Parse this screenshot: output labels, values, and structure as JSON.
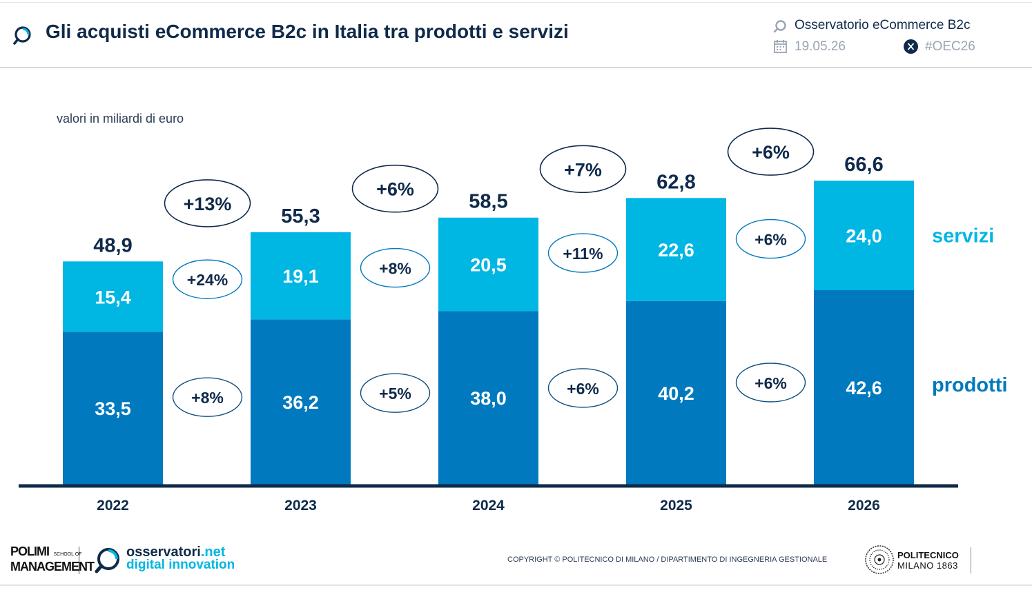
{
  "header": {
    "title": "Gli acquisti eCommerce B2c in Italia tra prodotti e servizi",
    "source": "Osservatorio eCommerce B2c",
    "date": "19.05.26",
    "hashtag": "#OEC26",
    "icons": [
      "magnifier-logo-icon",
      "calendar-icon",
      "x-social-icon"
    ]
  },
  "chart_data": {
    "type": "bar",
    "stacked": true,
    "subtitle": "valori in miliardi di euro",
    "categories": [
      "2022",
      "2023",
      "2024",
      "2025",
      "2026"
    ],
    "series": [
      {
        "name": "prodotti",
        "values": [
          33.5,
          36.2,
          38.0,
          40.2,
          42.6
        ],
        "labels": [
          "33,5",
          "36,2",
          "38,0",
          "40,2",
          "42,6"
        ],
        "color": "#0079bf"
      },
      {
        "name": "servizi",
        "values": [
          15.4,
          19.1,
          20.5,
          22.6,
          24.0
        ],
        "labels": [
          "15,4",
          "19,1",
          "20,5",
          "22,6",
          "24,0"
        ],
        "color": "#00b6e3"
      }
    ],
    "totals": [
      48.9,
      55.3,
      58.5,
      62.8,
      66.6
    ],
    "total_labels": [
      "48,9",
      "55,3",
      "58,5",
      "62,8",
      "66,6"
    ],
    "growth_total": [
      "+13%",
      "+6%",
      "+7%",
      "+6%"
    ],
    "growth_servizi": [
      "+24%",
      "+8%",
      "+11%",
      "+6%"
    ],
    "growth_prodotti": [
      "+8%",
      "+5%",
      "+6%",
      "+6%"
    ],
    "ylim": [
      0,
      70
    ],
    "grid": false,
    "legend": "right",
    "colors": {
      "prodotti": "#0079bf",
      "servizi": "#00b6e3",
      "text": "#0f2a4a"
    }
  },
  "footer": {
    "copyright": "COPYRIGHT © POLITECNICO DI MILANO / DIPARTIMENTO DI INGEGNERIA GESTIONALE",
    "polimi_line1": "POLIMI",
    "polimi_school": "SCHOOL OF",
    "polimi_line2": "MANAGEMENT",
    "osservatori_1": "osservatori",
    "osservatori_2": ".net",
    "osservatori_3": "digital innovation",
    "politecnico_1": "POLITECNICO",
    "politecnico_2": "MILANO 1863"
  }
}
